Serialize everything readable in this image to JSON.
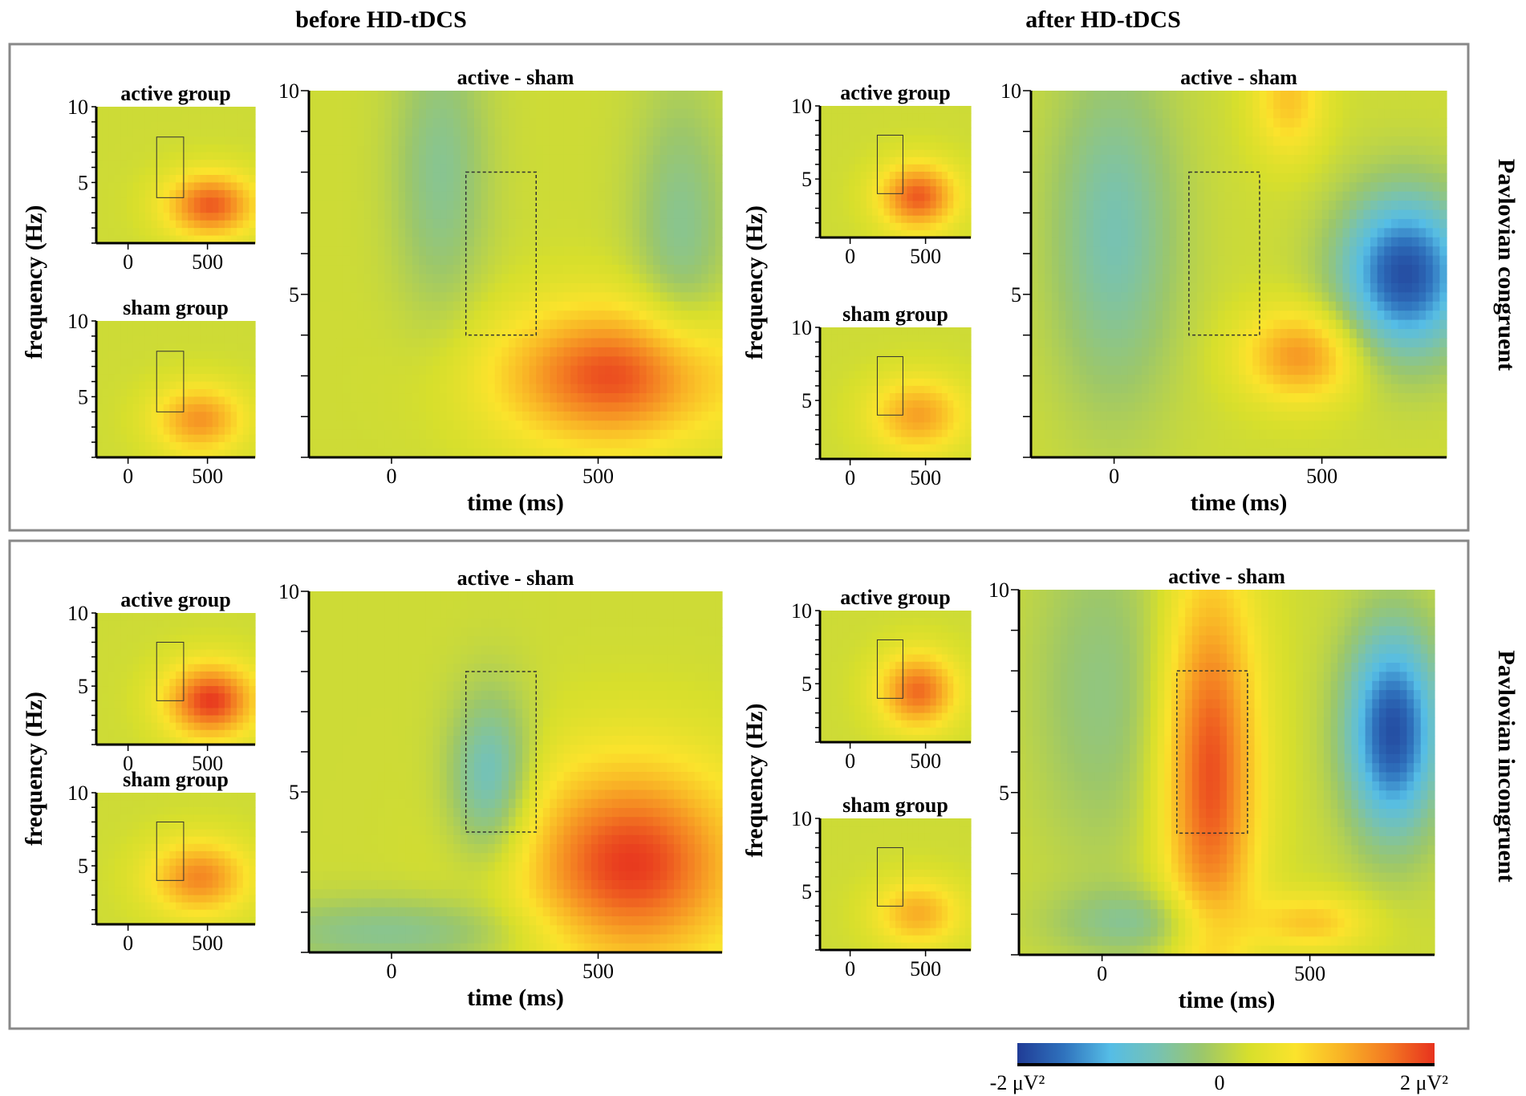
{
  "colors": {
    "scale": [
      "#203c96",
      "#2f72bd",
      "#55bde6",
      "#76c2b4",
      "#9cc76a",
      "#d7df2c",
      "#fbe32c",
      "#f9b326",
      "#f37a22",
      "#e7321e"
    ],
    "panel_border": "#888888"
  },
  "headers": {
    "before": "before HD-tDCS",
    "after": "after HD-tDCS"
  },
  "rows": [
    {
      "label": "Pavlovian congruent"
    },
    {
      "label": "Pavlovian incongruent"
    }
  ],
  "colorbar": {
    "min_label": "-2 μV²",
    "mid_label": "0",
    "max_label": "2 μV²",
    "min": -2,
    "max": 2,
    "unit": "μV²"
  },
  "chart_data": {
    "type": "heatmap",
    "axes": {
      "small_title_active": "active group",
      "small_title_sham": "sham group",
      "big_title": "active - sham",
      "ylabel": "frequency (Hz)",
      "xlabel": "time (ms)",
      "xlim": [
        -200,
        800
      ],
      "ylim": [
        1,
        10
      ],
      "x_ticks": [
        "0",
        "500"
      ],
      "y_ticks_small": [
        "10",
        "5"
      ],
      "y_ticks_big": [
        "10",
        "5"
      ],
      "roi": {
        "time": [
          180,
          350
        ],
        "freq": [
          4,
          8
        ]
      }
    },
    "panels": [
      {
        "row": "Pavlovian congruent",
        "session": "before HD-tDCS",
        "active": [
          {
            "t": 520,
            "f": 3.5,
            "a": 1.6,
            "st": 200,
            "sf": 1.5
          }
        ],
        "sham": [
          {
            "t": 450,
            "f": 3.5,
            "a": 1.2,
            "st": 200,
            "sf": 1.6
          }
        ],
        "diff": [
          {
            "t": 540,
            "f": 3.0,
            "a": 1.7,
            "st": 200,
            "sf": 1.2
          },
          {
            "t": 120,
            "f": 8.0,
            "a": -0.6,
            "st": 80,
            "sf": 2.5
          },
          {
            "t": 700,
            "f": 6.5,
            "a": -0.6,
            "st": 80,
            "sf": 2.5
          }
        ]
      },
      {
        "row": "Pavlovian congruent",
        "session": "after HD-tDCS",
        "active": [
          {
            "t": 450,
            "f": 3.8,
            "a": 1.6,
            "st": 180,
            "sf": 1.6
          }
        ],
        "sham": [
          {
            "t": 450,
            "f": 4.0,
            "a": 1.1,
            "st": 220,
            "sf": 1.8
          }
        ],
        "diff": [
          {
            "t": 700,
            "f": 5.5,
            "a": -2.0,
            "st": 110,
            "sf": 1.4
          },
          {
            "t": 450,
            "f": 3.5,
            "a": 1.2,
            "st": 100,
            "sf": 0.8
          },
          {
            "t": 0,
            "f": 6.5,
            "a": -0.8,
            "st": 110,
            "sf": 3
          },
          {
            "t": 420,
            "f": 9.8,
            "a": 0.8,
            "st": 60,
            "sf": 1
          }
        ]
      },
      {
        "row": "Pavlovian incongruent",
        "session": "before HD-tDCS",
        "active": [
          {
            "t": 520,
            "f": 4.0,
            "a": 1.8,
            "st": 200,
            "sf": 1.8
          }
        ],
        "sham": [
          {
            "t": 450,
            "f": 4.2,
            "a": 1.3,
            "st": 220,
            "sf": 1.8
          }
        ],
        "diff": [
          {
            "t": 580,
            "f": 3.2,
            "a": 1.8,
            "st": 190,
            "sf": 1.8
          },
          {
            "t": 240,
            "f": 5.3,
            "a": -1.0,
            "st": 70,
            "sf": 1.5
          },
          {
            "t": 0,
            "f": 1.5,
            "a": -0.6,
            "st": 250,
            "sf": 0.6
          }
        ]
      },
      {
        "row": "Pavlovian incongruent",
        "session": "after HD-tDCS",
        "active": [
          {
            "t": 450,
            "f": 4.5,
            "a": 1.5,
            "st": 180,
            "sf": 1.8
          }
        ],
        "sham": [
          {
            "t": 450,
            "f": 3.5,
            "a": 1.0,
            "st": 200,
            "sf": 1.6
          }
        ],
        "diff": [
          {
            "t": 260,
            "f": 5.5,
            "a": 1.7,
            "st": 80,
            "sf": 3.5
          },
          {
            "t": 700,
            "f": 6.5,
            "a": -2.0,
            "st": 80,
            "sf": 1.8
          },
          {
            "t": 0,
            "f": 7.5,
            "a": -0.5,
            "st": 120,
            "sf": 3
          },
          {
            "t": 100,
            "f": 1.8,
            "a": -0.6,
            "st": 150,
            "sf": 0.6
          },
          {
            "t": 500,
            "f": 1.8,
            "a": 0.8,
            "st": 100,
            "sf": 0.5
          }
        ]
      }
    ]
  }
}
